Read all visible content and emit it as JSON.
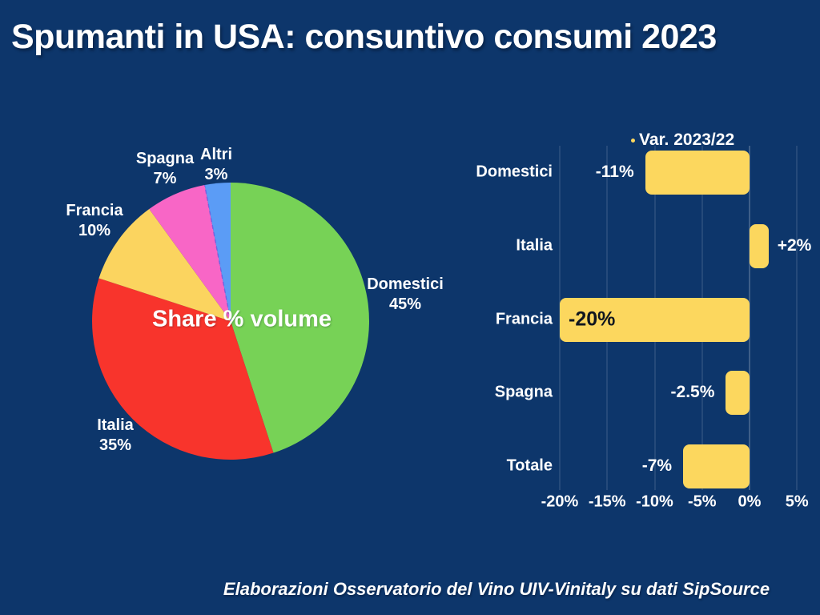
{
  "page": {
    "title": "Spumanti in USA: consuntivo consumi 2023",
    "footer": "Elaborazioni Osservatorio del Vino UIV-Vinitaly su dati SipSource",
    "background_color": "#0d366b"
  },
  "chart_data": [
    {
      "type": "pie",
      "title": "Share % volume",
      "start_angle_deg": 0,
      "direction": "clockwise",
      "unit": "%",
      "slices": [
        {
          "label": "Domestici",
          "value": 45,
          "value_label": "45%",
          "color": "#77d256"
        },
        {
          "label": "Italia",
          "value": 35,
          "value_label": "35%",
          "color": "#f8342c"
        },
        {
          "label": "Francia",
          "value": 10,
          "value_label": "10%",
          "color": "#fbd45f"
        },
        {
          "label": "Spagna",
          "value": 7,
          "value_label": "7%",
          "color": "#f866c6"
        },
        {
          "label": "Altri",
          "value": 3,
          "value_label": "3%",
          "color": "#5b9cf6",
          "divider_dashed_start": true
        }
      ],
      "divider_color": "#6c59e0"
    },
    {
      "type": "bar",
      "orientation": "horizontal",
      "title": "Var. 2023/22",
      "legend_position": "top",
      "bar_color": "#fcd75e",
      "grid": true,
      "xlim": [
        -20,
        5
      ],
      "x_tick_values": [
        -20,
        -15,
        -10,
        -5,
        0,
        5
      ],
      "x_tick_labels": [
        "-20%",
        "-15%",
        "-10%",
        "-5%",
        "0%",
        "5%"
      ],
      "bars": [
        {
          "category": "Domestici",
          "value": -11,
          "value_label": "-11%",
          "label_placement": "outside-left",
          "label_color": "#ffffff"
        },
        {
          "category": "Italia",
          "value": 2,
          "value_label": "+2%",
          "label_placement": "outside-right",
          "label_color": "#ffffff"
        },
        {
          "category": "Francia",
          "value": -20,
          "value_label": "-20%",
          "label_placement": "inside-left",
          "label_color": "#10161f"
        },
        {
          "category": "Spagna",
          "value": -2.5,
          "value_label": "-2.5%",
          "label_placement": "outside-left",
          "label_color": "#ffffff"
        },
        {
          "category": "Totale",
          "value": -7,
          "value_label": "-7%",
          "label_placement": "outside-left",
          "label_color": "#ffffff"
        }
      ]
    }
  ]
}
